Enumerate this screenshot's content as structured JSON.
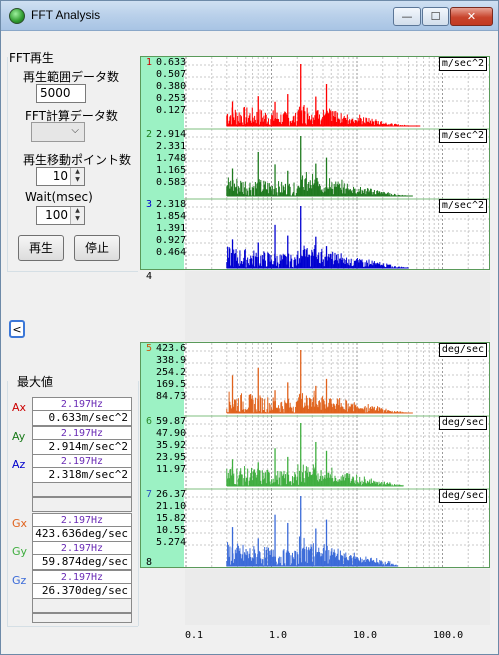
{
  "window": {
    "title": "FFT Analysis",
    "min_icon": "—",
    "max_icon": "☐",
    "close_icon": "✕"
  },
  "controls": {
    "group_title": "FFT再生",
    "range_label": "再生範囲データ数",
    "range_value": "5000",
    "fft_count_label": "FFT計算データ数",
    "fft_count_value": "",
    "move_points_label": "再生移動ポイント数",
    "move_points_value": "10",
    "wait_label": "Wait(msec)",
    "wait_value": "100",
    "play_button": "再生",
    "stop_button": "停止",
    "collapse_icon": "<"
  },
  "max_values": {
    "title": "最大値",
    "rows": [
      {
        "label": "Ax",
        "freq": "2.197Hz",
        "value": "0.633m/sec^2",
        "color": "#cc0000"
      },
      {
        "label": "Ay",
        "freq": "2.197Hz",
        "value": "2.914m/sec^2",
        "color": "#1a7a1a"
      },
      {
        "label": "Az",
        "freq": "2.197Hz",
        "value": "2.318m/sec^2",
        "color": "#0000cc"
      },
      {
        "label": "Gx",
        "freq": "2.197Hz",
        "value": "423.636deg/sec",
        "color": "#e0621c"
      },
      {
        "label": "Gy",
        "freq": "2.197Hz",
        "value": "59.874deg/sec",
        "color": "#3fae3f"
      },
      {
        "label": "Gz",
        "freq": "2.197Hz",
        "value": "26.370deg/sec",
        "color": "#3a6ad8"
      }
    ]
  },
  "plots": {
    "channels": [
      {
        "num": "1",
        "unit": "m/sec^2",
        "ticks": [
          "0.633",
          "0.507",
          "0.380",
          "0.253",
          "0.127"
        ],
        "color": "#ff0000",
        "num_color": "#cc0000"
      },
      {
        "num": "2",
        "unit": "m/sec^2",
        "ticks": [
          "2.914",
          "2.331",
          "1.748",
          "1.165",
          "0.583"
        ],
        "color": "#1f7a1f",
        "num_color": "#1a7a1a"
      },
      {
        "num": "3",
        "unit": "m/sec^2",
        "ticks": [
          "2.318",
          "1.854",
          "1.391",
          "0.927",
          "0.464"
        ],
        "color": "#0000d0",
        "num_color": "#0000cc"
      },
      {
        "num": "4",
        "unit": "",
        "ticks": [],
        "color": "#6a2bb5",
        "num_color": "#6a2bb5"
      },
      {
        "num": "5",
        "unit": "deg/sec",
        "ticks": [
          "423.6",
          "338.9",
          "254.2",
          "169.5",
          "84.73"
        ],
        "color": "#e0621c",
        "num_color": "#c85a10"
      },
      {
        "num": "6",
        "unit": "deg/sec",
        "ticks": [
          "59.87",
          "47.90",
          "35.92",
          "23.95",
          "11.97"
        ],
        "color": "#3fae3f",
        "num_color": "#2c8a2c"
      },
      {
        "num": "7",
        "unit": "deg/sec",
        "ticks": [
          "26.37",
          "21.10",
          "15.82",
          "10.55",
          "5.274"
        ],
        "color": "#3a6ad8",
        "num_color": "#2a4ec0"
      },
      {
        "num": "8",
        "unit": "",
        "ticks": [],
        "color": "#c0205c",
        "num_color": "#c0205c"
      }
    ],
    "x_ticks": [
      "0.1",
      "1.0",
      "10.0",
      "100.0"
    ]
  }
}
